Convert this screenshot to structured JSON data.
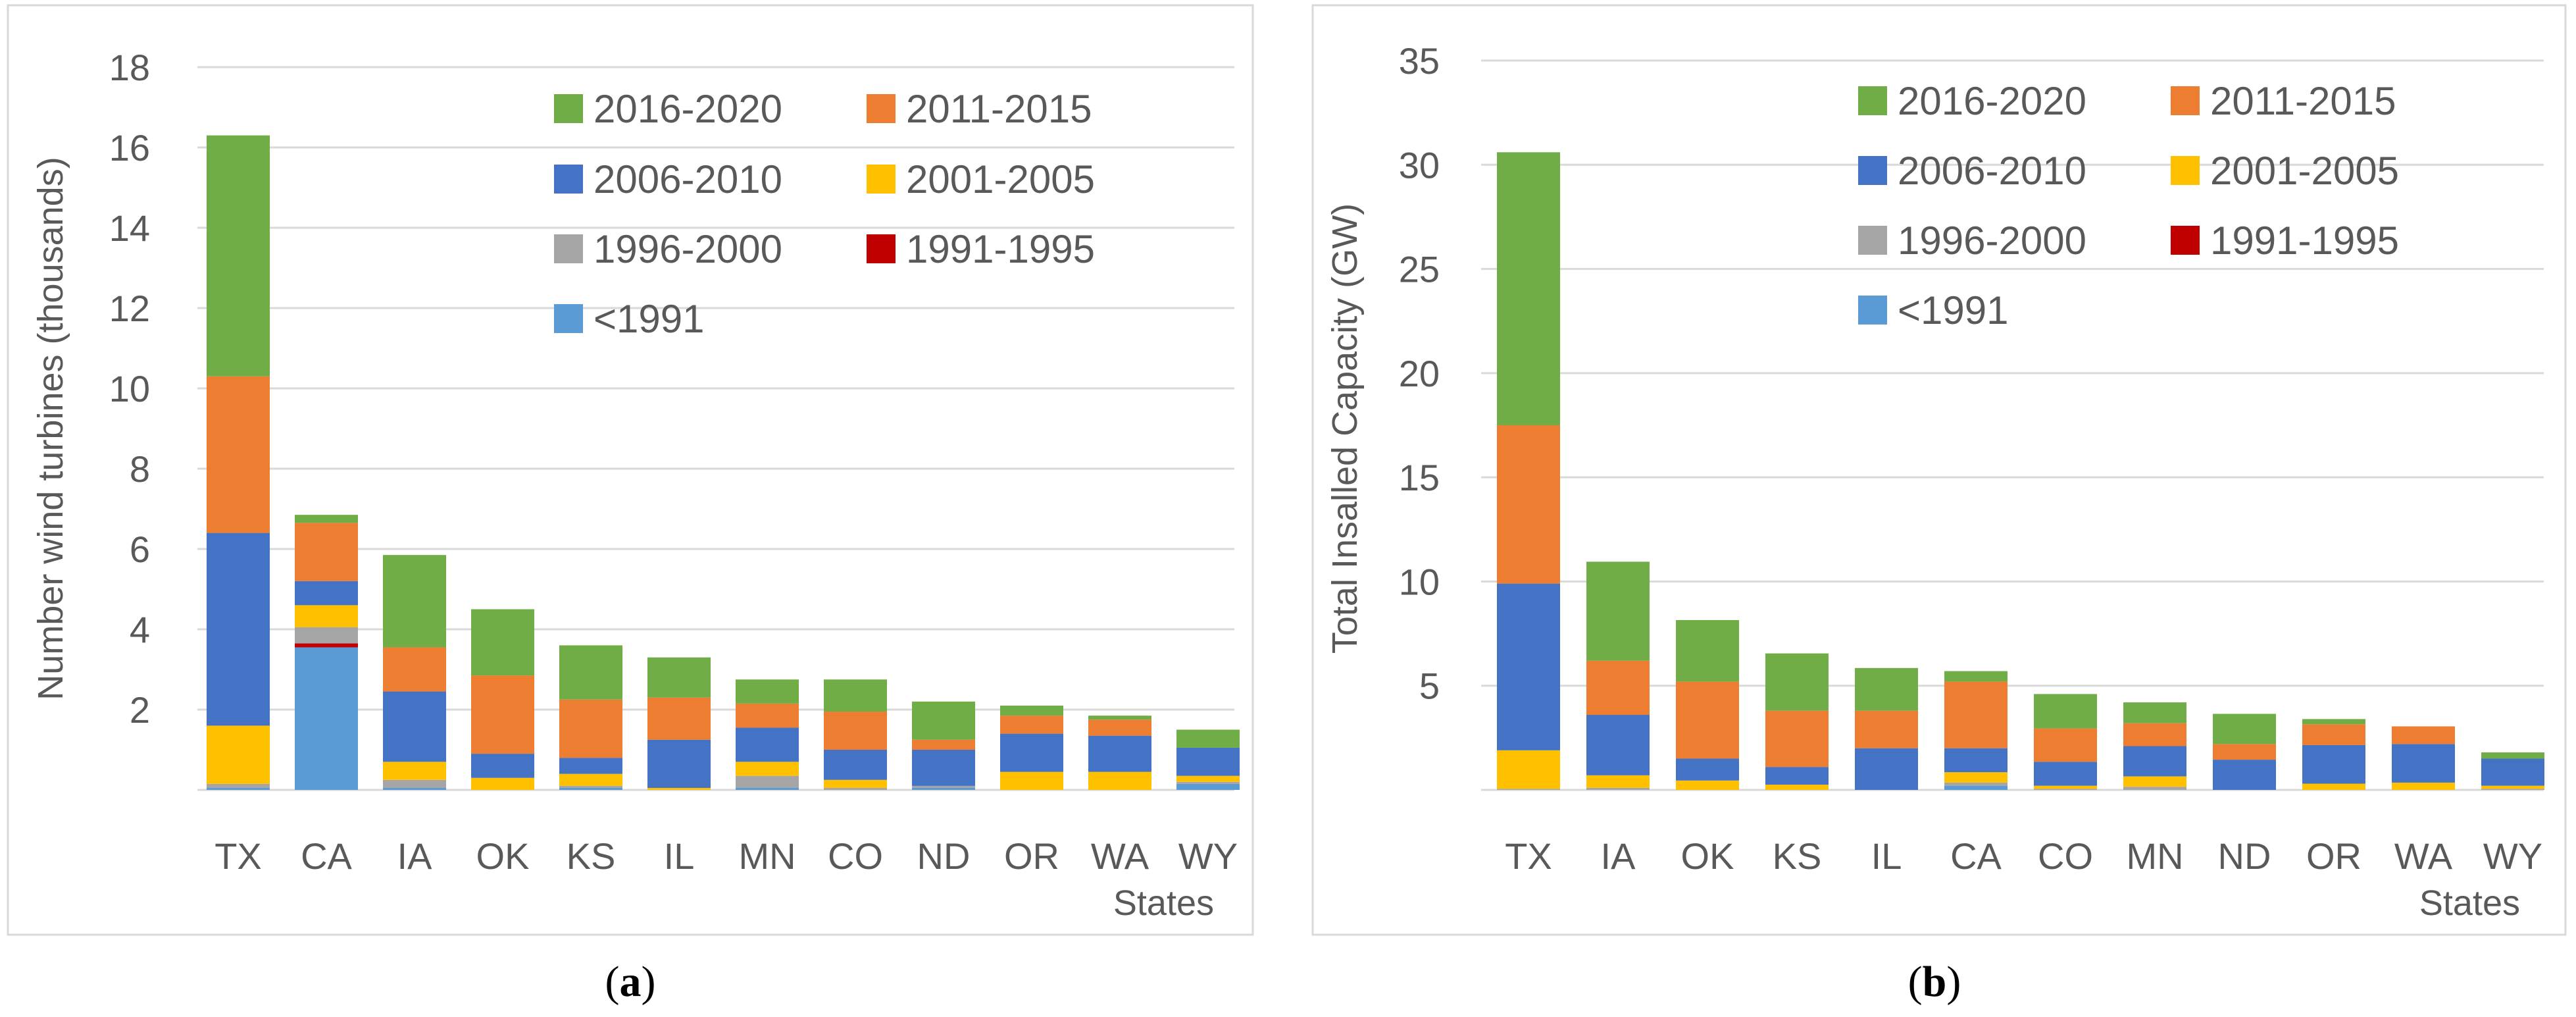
{
  "series_colors": {
    "<1991": "#5b9bd5",
    "1991-1995": "#c00000",
    "1996-2000": "#a5a5a5",
    "2001-2005": "#ffc000",
    "2006-2010": "#4472c4",
    "2011-2015": "#ed7d31",
    "2016-2020": "#70ad47"
  },
  "legend_order": [
    "2016-2020",
    "2011-2015",
    "2006-2010",
    "2001-2005",
    "1996-2000",
    "1991-1995",
    "<1991"
  ],
  "chart_data": [
    {
      "id": "a",
      "type": "bar",
      "stacked": true,
      "caption_open": "(",
      "caption_letter": "a",
      "caption_close": ")",
      "ylabel": "Number wind turbines (thousands)",
      "xlabel": "States",
      "ylim": [
        0,
        18
      ],
      "yticks": [
        "18",
        "16",
        "14",
        "12",
        "10",
        "8",
        "6",
        "4",
        "2"
      ],
      "ytick_values": [
        18,
        16,
        14,
        12,
        10,
        8,
        6,
        4,
        2
      ],
      "grid": true,
      "legend_position": "top-right",
      "categories": [
        "TX",
        "CA",
        "IA",
        "OK",
        "KS",
        "IL",
        "MN",
        "CO",
        "ND",
        "OR",
        "WA",
        "WY"
      ],
      "series": [
        {
          "name": "<1991",
          "values": [
            0.05,
            3.55,
            0.05,
            0.0,
            0.05,
            0.0,
            0.05,
            0.0,
            0.05,
            0.0,
            0.0,
            0.15
          ]
        },
        {
          "name": "1991-1995",
          "values": [
            0.0,
            0.1,
            0.0,
            0.0,
            0.0,
            0.0,
            0.0,
            0.0,
            0.0,
            0.0,
            0.0,
            0.0
          ]
        },
        {
          "name": "1996-2000",
          "values": [
            0.1,
            0.4,
            0.2,
            0.0,
            0.05,
            0.0,
            0.3,
            0.05,
            0.05,
            0.0,
            0.0,
            0.05
          ]
        },
        {
          "name": "2001-2005",
          "values": [
            1.45,
            0.55,
            0.45,
            0.3,
            0.3,
            0.05,
            0.35,
            0.2,
            0.0,
            0.45,
            0.45,
            0.15
          ]
        },
        {
          "name": "2006-2010",
          "values": [
            4.8,
            0.6,
            1.75,
            0.6,
            0.4,
            1.2,
            0.85,
            0.75,
            0.9,
            0.95,
            0.9,
            0.7
          ]
        },
        {
          "name": "2011-2015",
          "values": [
            3.9,
            1.45,
            1.1,
            1.95,
            1.45,
            1.05,
            0.6,
            0.95,
            0.25,
            0.45,
            0.4,
            0.0
          ]
        },
        {
          "name": "2016-2020",
          "values": [
            6.0,
            0.2,
            2.3,
            1.65,
            1.35,
            1.0,
            0.6,
            0.8,
            0.95,
            0.25,
            0.1,
            0.45
          ]
        }
      ]
    },
    {
      "id": "b",
      "type": "bar",
      "stacked": true,
      "caption_open": "(",
      "caption_letter": "b",
      "caption_close": ")",
      "ylabel": "Total Insalled Capacity (GW)",
      "xlabel": "States",
      "ylim": [
        0,
        35
      ],
      "yticks": [
        "35",
        "30",
        "25",
        "20",
        "15",
        "10",
        "5"
      ],
      "ytick_values": [
        35,
        30,
        25,
        20,
        15,
        10,
        5
      ],
      "grid": true,
      "legend_position": "top-right",
      "categories": [
        "TX",
        "IA",
        "OK",
        "KS",
        "IL",
        "CA",
        "CO",
        "MN",
        "ND",
        "OR",
        "WA",
        "WY"
      ],
      "series": [
        {
          "name": "<1991",
          "values": [
            0.0,
            0.0,
            0.0,
            0.0,
            0.0,
            0.2,
            0.0,
            0.0,
            0.0,
            0.0,
            0.0,
            0.0
          ]
        },
        {
          "name": "1991-1995",
          "values": [
            0.0,
            0.0,
            0.0,
            0.0,
            0.0,
            0.0,
            0.0,
            0.0,
            0.0,
            0.0,
            0.0,
            0.0
          ]
        },
        {
          "name": "1996-2000",
          "values": [
            0.05,
            0.1,
            0.0,
            0.0,
            0.0,
            0.15,
            0.05,
            0.15,
            0.0,
            0.0,
            0.0,
            0.05
          ]
        },
        {
          "name": "2001-2005",
          "values": [
            1.85,
            0.6,
            0.45,
            0.25,
            0.0,
            0.5,
            0.15,
            0.5,
            0.0,
            0.3,
            0.35,
            0.15
          ]
        },
        {
          "name": "2006-2010",
          "values": [
            8.0,
            2.9,
            1.05,
            0.85,
            2.0,
            1.15,
            1.15,
            1.45,
            1.45,
            1.85,
            1.85,
            1.3
          ]
        },
        {
          "name": "2011-2015",
          "values": [
            7.6,
            2.6,
            3.7,
            2.7,
            1.8,
            3.2,
            1.6,
            1.1,
            0.75,
            1.0,
            0.85,
            0.0
          ]
        },
        {
          "name": "2016-2020",
          "values": [
            13.1,
            4.75,
            2.95,
            2.75,
            2.05,
            0.5,
            1.65,
            1.0,
            1.45,
            0.25,
            0.0,
            0.3
          ]
        }
      ]
    }
  ]
}
